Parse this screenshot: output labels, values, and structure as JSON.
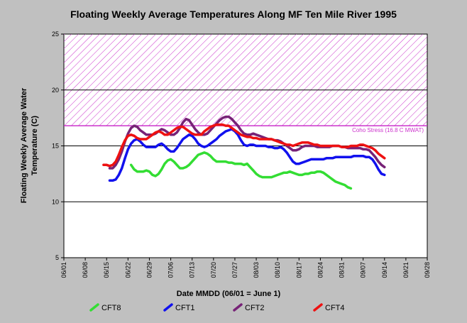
{
  "chart_data": {
    "type": "line",
    "title": "Floating Weekly Average Temperatures Along MF Ten Mile River 1995",
    "xlabel": "Date MMDD (06/01 = June 1)",
    "ylabel_lines": [
      "Floating Weekly Average Water",
      "Temperature (C)"
    ],
    "x_ticks": [
      "06/01",
      "06/08",
      "06/15",
      "06/22",
      "06/29",
      "07/06",
      "07/13",
      "07/20",
      "07/27",
      "08/03",
      "08/10",
      "08/17",
      "08/24",
      "08/31",
      "09/07",
      "09/14",
      "09/21",
      "09/28"
    ],
    "ylim": [
      5,
      25
    ],
    "y_ticks": [
      "5",
      "10",
      "15",
      "20",
      "25"
    ],
    "grid_y": [
      10,
      15,
      20
    ],
    "stress_band": {
      "from": 16.8,
      "to": 25,
      "label": "Coho Stress (16.8 C MWAT)",
      "color": "#cc33cc"
    },
    "series": [
      {
        "name": "CFT8",
        "color": "#33dd33",
        "start_day": 22,
        "values": [
          13.3,
          12.9,
          12.7,
          12.7,
          12.7,
          12.8,
          12.7,
          12.4,
          12.3,
          12.5,
          12.9,
          13.4,
          13.7,
          13.8,
          13.6,
          13.3,
          13.0,
          13.0,
          13.1,
          13.3,
          13.6,
          13.9,
          14.2,
          14.3,
          14.4,
          14.3,
          14.1,
          13.8,
          13.6,
          13.6,
          13.6,
          13.6,
          13.5,
          13.5,
          13.4,
          13.4,
          13.4,
          13.3,
          13.4,
          13.1,
          12.8,
          12.5,
          12.3,
          12.2,
          12.2,
          12.2,
          12.2,
          12.3,
          12.4,
          12.5,
          12.6,
          12.6,
          12.7,
          12.6,
          12.5,
          12.4,
          12.4,
          12.5,
          12.5,
          12.6,
          12.6,
          12.7,
          12.7,
          12.6,
          12.4,
          12.2,
          12.0,
          11.8,
          11.7,
          11.6,
          11.5,
          11.3,
          11.2
        ]
      },
      {
        "name": "CFT1",
        "color": "#1111ee",
        "start_day": 15,
        "values": [
          11.9,
          11.9,
          12.0,
          12.4,
          13.0,
          13.9,
          14.7,
          15.2,
          15.5,
          15.6,
          15.4,
          15.1,
          14.9,
          14.9,
          14.9,
          14.9,
          15.1,
          15.2,
          15.0,
          14.7,
          14.5,
          14.5,
          14.8,
          15.2,
          15.6,
          15.8,
          16.0,
          15.9,
          15.6,
          15.2,
          15.0,
          14.9,
          15.0,
          15.2,
          15.4,
          15.6,
          15.9,
          16.1,
          16.3,
          16.4,
          16.5,
          16.3,
          16.0,
          15.5,
          15.1,
          15.0,
          15.1,
          15.1,
          15.0,
          15.0,
          15.0,
          15.0,
          14.9,
          14.9,
          14.8,
          14.8,
          14.9,
          14.7,
          14.4,
          14.0,
          13.6,
          13.4,
          13.4,
          13.5,
          13.6,
          13.7,
          13.8,
          13.8,
          13.8,
          13.8,
          13.8,
          13.9,
          13.9,
          13.9,
          14.0,
          14.0,
          14.0,
          14.0,
          14.0,
          14.0,
          14.1,
          14.1,
          14.1,
          14.1,
          14.0,
          14.0,
          13.8,
          13.4,
          12.9,
          12.5,
          12.4
        ]
      },
      {
        "name": "CFT2",
        "color": "#772277",
        "start_day": 15,
        "values": [
          13.0,
          13.0,
          13.3,
          13.8,
          14.5,
          15.4,
          16.1,
          16.6,
          16.8,
          16.7,
          16.4,
          16.2,
          16.0,
          16.0,
          16.0,
          16.1,
          16.3,
          16.5,
          16.4,
          16.2,
          16.0,
          16.0,
          16.2,
          16.6,
          17.1,
          17.4,
          17.3,
          16.9,
          16.5,
          16.2,
          16.0,
          16.0,
          16.1,
          16.4,
          16.7,
          17.0,
          17.3,
          17.5,
          17.6,
          17.6,
          17.4,
          17.1,
          16.8,
          16.4,
          16.1,
          16.0,
          16.0,
          16.1,
          16.0,
          15.9,
          15.8,
          15.7,
          15.6,
          15.6,
          15.5,
          15.5,
          15.4,
          15.2,
          15.0,
          14.8,
          14.6,
          14.6,
          14.7,
          14.9,
          15.0,
          15.0,
          15.0,
          15.0,
          14.9,
          14.9,
          14.9,
          14.9,
          14.9,
          15.0,
          15.0,
          15.0,
          14.9,
          14.9,
          14.8,
          14.8,
          14.8,
          14.8,
          14.8,
          14.7,
          14.7,
          14.6,
          14.3,
          14.0,
          13.6,
          13.3,
          13.1
        ]
      },
      {
        "name": "CFT4",
        "color": "#ee1111",
        "start_day": 13,
        "values": [
          13.3,
          13.3,
          13.2,
          13.3,
          13.6,
          14.2,
          14.9,
          15.5,
          15.9,
          16.0,
          15.9,
          15.7,
          15.6,
          15.6,
          15.6,
          15.8,
          16.0,
          16.2,
          16.3,
          16.2,
          16.0,
          16.0,
          16.2,
          16.4,
          16.6,
          16.7,
          16.7,
          16.5,
          16.3,
          16.1,
          16.0,
          16.0,
          16.0,
          16.3,
          16.5,
          16.7,
          16.8,
          16.9,
          16.9,
          16.9,
          16.8,
          16.8,
          16.6,
          16.4,
          16.2,
          16.0,
          15.9,
          15.8,
          15.8,
          15.7,
          15.7,
          15.6,
          15.6,
          15.6,
          15.6,
          15.6,
          15.5,
          15.4,
          15.3,
          15.2,
          15.1,
          15.1,
          15.0,
          15.1,
          15.2,
          15.3,
          15.3,
          15.3,
          15.2,
          15.1,
          15.1,
          15.0,
          15.0,
          15.0,
          15.0,
          15.0,
          15.0,
          15.0,
          14.9,
          14.9,
          14.9,
          15.0,
          15.0,
          15.0,
          15.1,
          15.1,
          15.0,
          14.9,
          14.8,
          14.6,
          14.3,
          14.1,
          13.9
        ]
      }
    ]
  }
}
